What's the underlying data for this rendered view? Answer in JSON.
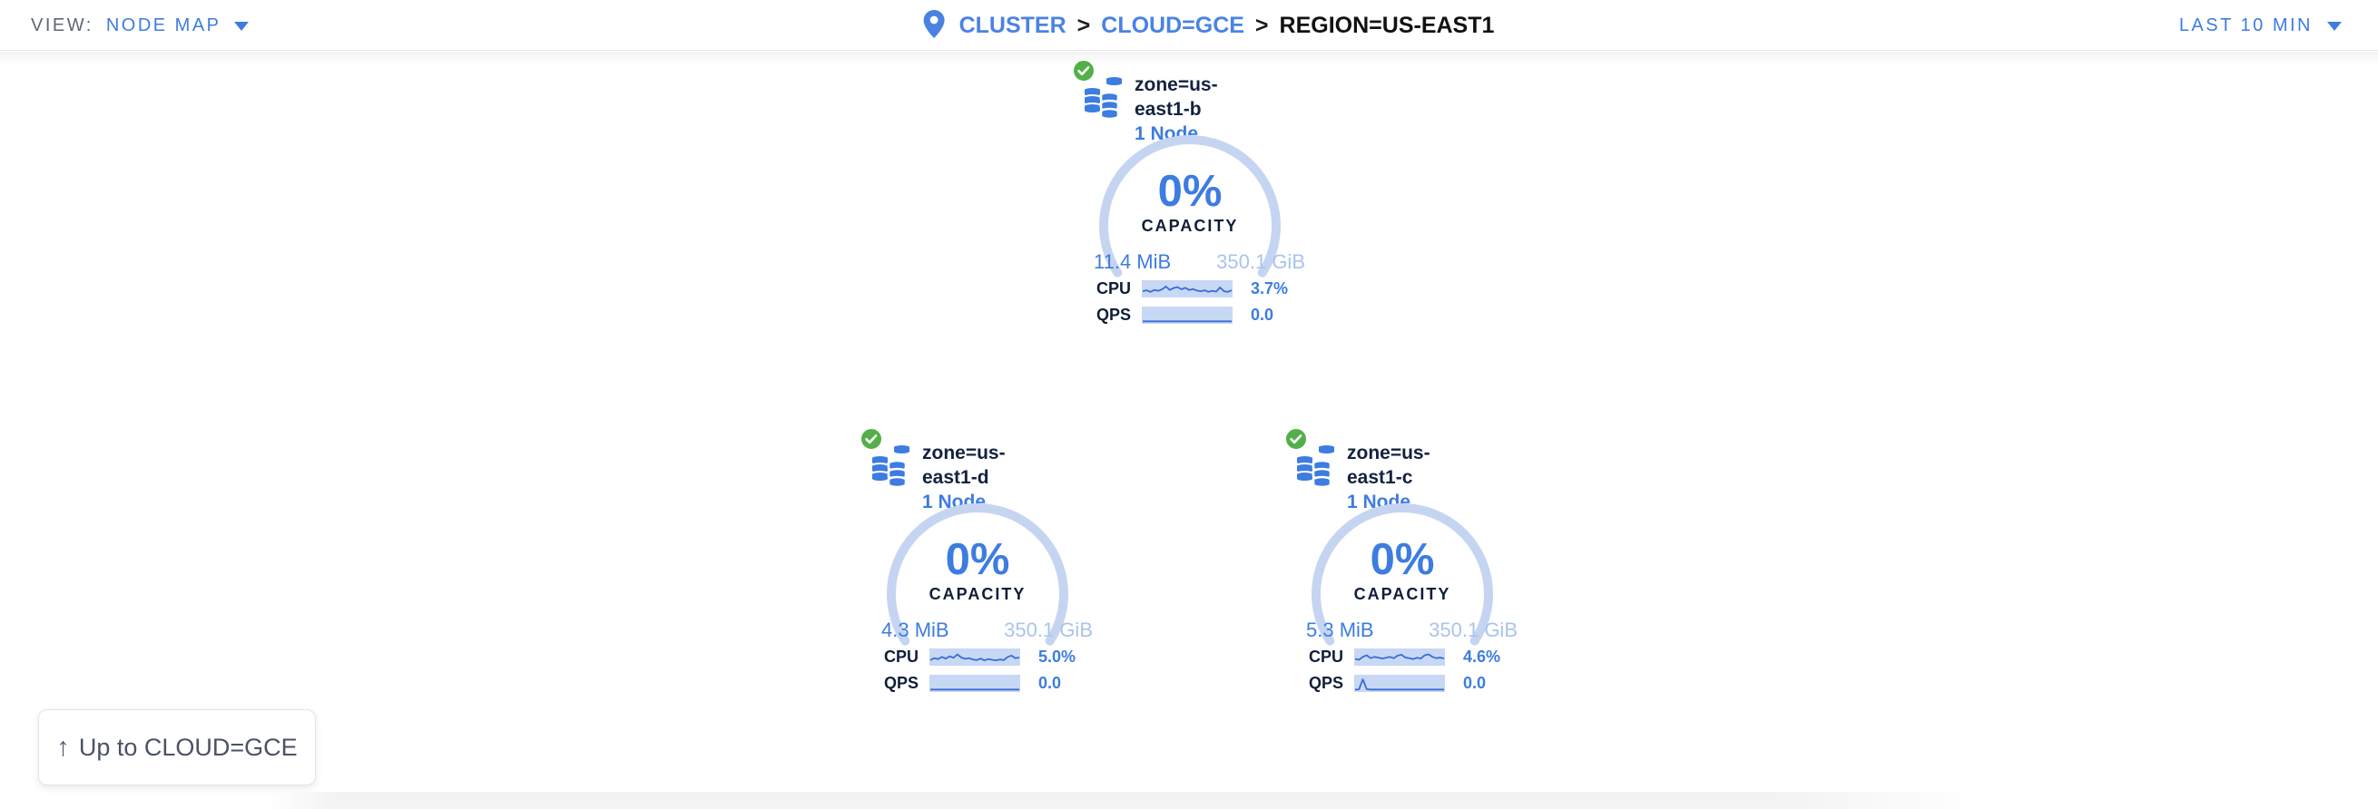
{
  "topbar": {
    "view_label": "VIEW:",
    "view_value": "NODE MAP",
    "time_range": "LAST 10 MIN",
    "breadcrumb": {
      "separator": ">",
      "items": [
        {
          "label": "CLUSTER"
        },
        {
          "label": "CLOUD=GCE"
        },
        {
          "label": "REGION=US-EAST1"
        }
      ]
    }
  },
  "cards": [
    {
      "title": "zone=us-east1-b",
      "nodes": "1 Node",
      "status": "healthy",
      "capacity_pct": "0%",
      "capacity_label": "CAPACITY",
      "capacity_used": "11.4 MiB",
      "capacity_total": "350.1 GiB",
      "cpu_label": "CPU",
      "cpu_value": "3.7%",
      "qps_label": "QPS",
      "qps_value": "0.0",
      "cpu_spark": [
        0.35,
        0.42,
        0.3,
        0.45,
        0.38,
        0.5,
        0.72,
        0.45,
        0.6,
        0.68,
        0.5,
        0.62,
        0.45,
        0.52,
        0.4,
        0.35,
        0.42,
        0.3,
        0.38,
        0.32,
        0.65,
        0.35,
        0.3,
        0.42
      ],
      "qps_spark": [
        0.05,
        0.05,
        0.05,
        0.05,
        0.05,
        0.05,
        0.05,
        0.05,
        0.05,
        0.05,
        0.05,
        0.05,
        0.05,
        0.05,
        0.05,
        0.05,
        0.05,
        0.05,
        0.05,
        0.05,
        0.05,
        0.05,
        0.05,
        0.05
      ]
    },
    {
      "title": "zone=us-east1-d",
      "nodes": "1 Node",
      "status": "healthy",
      "capacity_pct": "0%",
      "capacity_label": "CAPACITY",
      "capacity_used": "4.3 MiB",
      "capacity_total": "350.1 GiB",
      "cpu_label": "CPU",
      "cpu_value": "5.0%",
      "qps_label": "QPS",
      "qps_value": "0.0",
      "cpu_spark": [
        0.3,
        0.45,
        0.38,
        0.55,
        0.42,
        0.6,
        0.48,
        0.75,
        0.5,
        0.4,
        0.45,
        0.35,
        0.3,
        0.42,
        0.28,
        0.38,
        0.32,
        0.28,
        0.35,
        0.3,
        0.55,
        0.65,
        0.45,
        0.5
      ],
      "qps_spark": [
        0.05,
        0.05,
        0.05,
        0.05,
        0.05,
        0.05,
        0.05,
        0.05,
        0.05,
        0.05,
        0.05,
        0.05,
        0.05,
        0.05,
        0.05,
        0.05,
        0.05,
        0.05,
        0.05,
        0.05,
        0.05,
        0.05,
        0.05,
        0.05
      ]
    },
    {
      "title": "zone=us-east1-c",
      "nodes": "1 Node",
      "status": "healthy",
      "capacity_pct": "0%",
      "capacity_label": "CAPACITY",
      "capacity_used": "5.3 MiB",
      "capacity_total": "350.1 GiB",
      "cpu_label": "CPU",
      "cpu_value": "4.6%",
      "qps_label": "QPS",
      "qps_value": "0.0",
      "cpu_spark": [
        0.4,
        0.32,
        0.55,
        0.68,
        0.45,
        0.55,
        0.5,
        0.42,
        0.48,
        0.55,
        0.45,
        0.65,
        0.72,
        0.5,
        0.45,
        0.38,
        0.48,
        0.42,
        0.68,
        0.75,
        0.55,
        0.45,
        0.5,
        0.42
      ],
      "qps_spark": [
        0.05,
        0.06,
        0.85,
        0.08,
        0.05,
        0.05,
        0.05,
        0.05,
        0.05,
        0.05,
        0.05,
        0.05,
        0.05,
        0.05,
        0.05,
        0.05,
        0.05,
        0.05,
        0.05,
        0.05,
        0.05,
        0.05,
        0.05,
        0.05
      ]
    }
  ],
  "up_button": {
    "arrow": "↑",
    "label": "Up to CLOUD=GCE"
  },
  "colors": {
    "accent": "#3d7ce1",
    "breadcrumb_link": "#4a82e4",
    "capacity_total_text": "#a9c4ec",
    "gauge_arc": "#c5d5f1",
    "sparkline_fill": "#c7d8f4",
    "sparkline_line": "#3b6cd4",
    "healthy_green": "#53b048",
    "dark_text": "#13223f"
  }
}
